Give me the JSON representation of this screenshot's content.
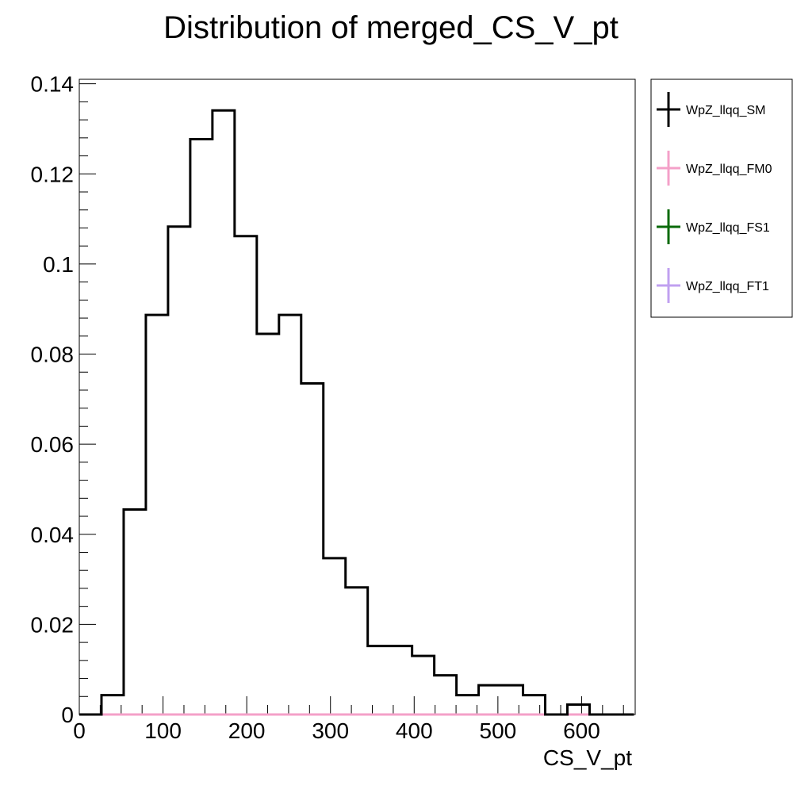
{
  "chart_data": {
    "type": "step",
    "title": "Distribution of merged_CS_V_pt",
    "xlabel": "CS_V_pt",
    "ylabel": "",
    "xlim": [
      0,
      664
    ],
    "ylim": [
      0,
      0.141
    ],
    "x_ticks": [
      0,
      100,
      200,
      300,
      400,
      500,
      600
    ],
    "x_tick_labels": [
      "0",
      "100",
      "200",
      "300",
      "400",
      "500",
      "600"
    ],
    "y_ticks": [
      0,
      0.02,
      0.04,
      0.06,
      0.08,
      0.1,
      0.12,
      0.14
    ],
    "y_tick_labels": [
      "0",
      "0.02",
      "0.04",
      "0.06",
      "0.08",
      "0.1",
      "0.12",
      "0.14"
    ],
    "grid": false,
    "legend_position": "right",
    "bin_edges": [
      0,
      26.5,
      53,
      79.5,
      106,
      132.5,
      159,
      185.5,
      212,
      238.5,
      265,
      291.5,
      318,
      344.5,
      371,
      397.5,
      424,
      450.5,
      477,
      503.5,
      530,
      556.5,
      583,
      609.5,
      636,
      662.5
    ],
    "series": [
      {
        "name": "WpZ_llqq_SM",
        "color": "#000000",
        "values": [
          0,
          0.0043,
          0.0455,
          0.0887,
          0.1083,
          0.1277,
          0.1341,
          0.1062,
          0.0845,
          0.0887,
          0.0735,
          0.0347,
          0.0282,
          0.0152,
          0.0152,
          0.013,
          0.0087,
          0.0043,
          0.0065,
          0.0065,
          0.0043,
          0,
          0.0022,
          0,
          0
        ]
      },
      {
        "name": "WpZ_llqq_FM0",
        "color": "#f4a0c8",
        "values": [
          0,
          0,
          0,
          0,
          0,
          0,
          0,
          0,
          0,
          0,
          0,
          0,
          0,
          0,
          0,
          0,
          0,
          0,
          0,
          0,
          0,
          0,
          0,
          0,
          0
        ]
      },
      {
        "name": "WpZ_llqq_FS1",
        "color": "#0a6a0a",
        "values": [
          0,
          0,
          0,
          0,
          0,
          0,
          0,
          0,
          0,
          0,
          0,
          0,
          0,
          0,
          0,
          0,
          0,
          0,
          0,
          0,
          0,
          0,
          0,
          0,
          0
        ]
      },
      {
        "name": "WpZ_llqq_FT1",
        "color": "#c0a0f0",
        "values": [
          0,
          0,
          0,
          0,
          0,
          0,
          0,
          0,
          0,
          0,
          0,
          0,
          0,
          0,
          0,
          0,
          0,
          0,
          0,
          0,
          0,
          0,
          0,
          0,
          0
        ]
      }
    ]
  }
}
